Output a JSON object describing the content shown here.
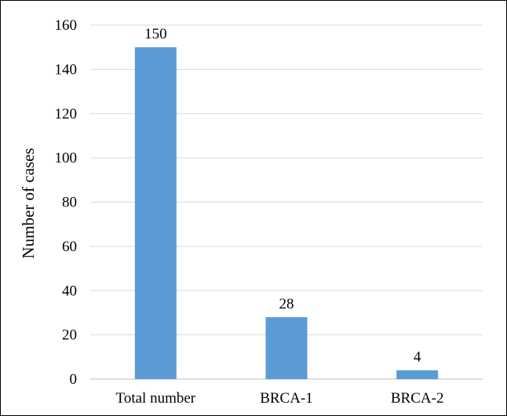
{
  "chart_data": {
    "type": "bar",
    "categories": [
      "Total number",
      "BRCA-1",
      "BRCA-2"
    ],
    "values": [
      150,
      28,
      4
    ],
    "data_labels": [
      "150",
      "28",
      "4"
    ],
    "title": "",
    "xlabel": "",
    "ylabel": "Number of cases",
    "ylim": [
      0,
      160
    ],
    "yticks": [
      0,
      20,
      40,
      60,
      80,
      100,
      120,
      140,
      160
    ],
    "ytick_labels": [
      "0",
      "20",
      "40",
      "60",
      "80",
      "100",
      "120",
      "140",
      "160"
    ],
    "grid": true,
    "legend": "none",
    "colors": {
      "bar": "#5b9bd5",
      "grid": "#d9d9d9",
      "axis": "#bfbfbf"
    }
  }
}
